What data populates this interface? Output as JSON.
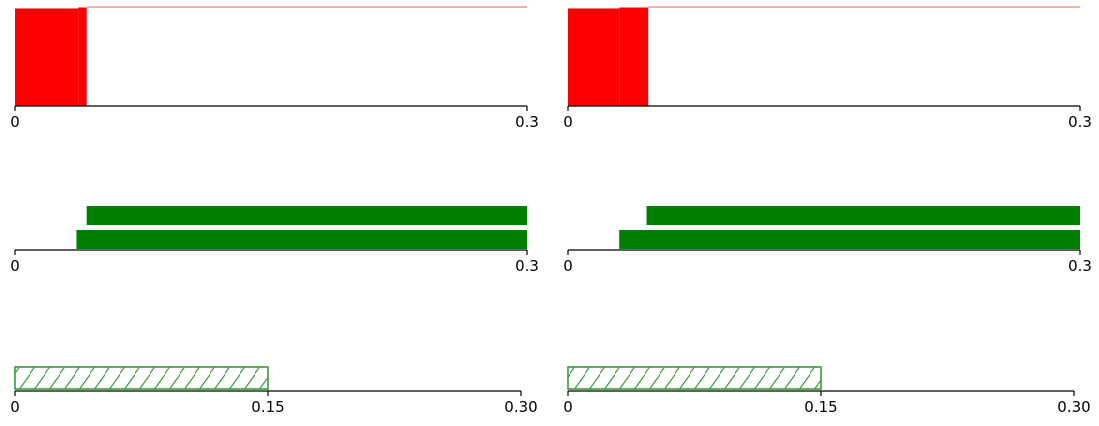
{
  "colors": {
    "red": "#ff0000",
    "light_red": "#ff9090",
    "green": "#008000",
    "hatch_green": "#3a9a3a",
    "axis": "#000000"
  },
  "chart_data": [
    {
      "id": "hist-left",
      "type": "histogram",
      "xlim": [
        0,
        0.3
      ],
      "ticks": [
        {
          "value": 0,
          "label": "0"
        },
        {
          "value": 0.3,
          "label": "0.3"
        }
      ],
      "ylim": [
        0,
        1
      ],
      "bins": [
        {
          "x0": 0,
          "x1": 0.037,
          "value": 0.985,
          "color": "red"
        },
        {
          "x0": 0.037,
          "x1": 0.042,
          "value": 0.995,
          "color": "red"
        },
        {
          "x0": 0.042,
          "x1": 0.3,
          "value": 1.0,
          "color": "light_red"
        }
      ]
    },
    {
      "id": "hist-right",
      "type": "histogram",
      "xlim": [
        0,
        0.3
      ],
      "ticks": [
        {
          "value": 0,
          "label": "0"
        },
        {
          "value": 0.3,
          "label": "0.3"
        }
      ],
      "ylim": [
        0,
        1
      ],
      "bins": [
        {
          "x0": 0,
          "x1": 0.03,
          "value": 0.985,
          "color": "red"
        },
        {
          "x0": 0.03,
          "x1": 0.047,
          "value": 0.995,
          "color": "red"
        },
        {
          "x0": 0.047,
          "x1": 0.3,
          "value": 1.0,
          "color": "light_red"
        }
      ]
    },
    {
      "id": "ranges-left",
      "type": "bar",
      "xlim": [
        0,
        0.3
      ],
      "ticks": [
        {
          "value": 0,
          "label": "0"
        },
        {
          "value": 0.3,
          "label": "0.3"
        }
      ],
      "bars": [
        {
          "start": 0.042,
          "end": 0.3,
          "color": "green"
        },
        {
          "start": 0.036,
          "end": 0.3,
          "color": "green"
        }
      ]
    },
    {
      "id": "ranges-right",
      "type": "bar",
      "xlim": [
        0,
        0.3
      ],
      "ticks": [
        {
          "value": 0,
          "label": "0"
        },
        {
          "value": 0.3,
          "label": "0.3"
        }
      ],
      "bars": [
        {
          "start": 0.046,
          "end": 0.3,
          "color": "green"
        },
        {
          "start": 0.03,
          "end": 0.3,
          "color": "green"
        }
      ]
    },
    {
      "id": "hatched-left",
      "type": "bar",
      "xlim": [
        0,
        0.3
      ],
      "ticks": [
        {
          "value": 0,
          "label": "0"
        },
        {
          "value": 0.15,
          "label": "0.15"
        },
        {
          "value": 0.3,
          "label": "0.30"
        }
      ],
      "bars": [
        {
          "start": 0,
          "end": 0.15,
          "color": "hatch_green",
          "pattern": "hatch"
        }
      ]
    },
    {
      "id": "hatched-right",
      "type": "bar",
      "xlim": [
        0,
        0.3
      ],
      "ticks": [
        {
          "value": 0,
          "label": "0"
        },
        {
          "value": 0.15,
          "label": "0.15"
        },
        {
          "value": 0.3,
          "label": "0.30"
        }
      ],
      "bars": [
        {
          "start": 0,
          "end": 0.15,
          "color": "hatch_green",
          "pattern": "hatch"
        }
      ]
    }
  ]
}
